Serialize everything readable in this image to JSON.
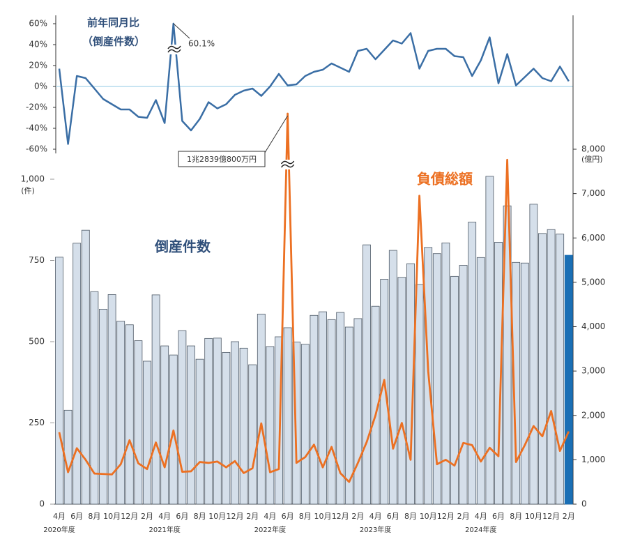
{
  "chart_data": [
    {
      "type": "line",
      "title": "前年同月比",
      "subtitle": "（倒産件数）",
      "color": "#3a6ea5",
      "values": [
        17,
        -55,
        10,
        8,
        -2,
        -12,
        -17,
        -22,
        -22,
        -29,
        -30,
        -13,
        -35,
        60.1,
        -33,
        -42,
        -31,
        -15,
        -21,
        -17,
        -8,
        -4,
        -2,
        -9,
        0,
        12,
        1,
        2,
        10,
        14,
        16,
        22,
        18,
        14,
        34,
        36,
        26,
        35,
        44,
        41,
        51,
        17,
        34,
        36,
        36,
        29,
        28,
        10,
        25,
        47,
        3,
        31,
        1,
        9,
        17,
        8,
        5,
        19,
        5
      ],
      "annotation": "60.1%",
      "ylim": [
        -60,
        60
      ],
      "yticks": [
        {
          "value": 60,
          "label": "60%"
        },
        {
          "value": 40,
          "label": "40%"
        },
        {
          "value": 20,
          "label": "20%"
        },
        {
          "value": 0,
          "label": "0%"
        },
        {
          "value": -20,
          "label": "-20%"
        },
        {
          "value": -40,
          "label": "-40%"
        },
        {
          "value": -60,
          "label": "-60%"
        }
      ],
      "zero_line_color": "#a8d4ea"
    },
    {
      "type": "bar-line",
      "categories": [
        "4月",
        null,
        "6月",
        null,
        "8月",
        null,
        "10月",
        null,
        "12月",
        null,
        "2月",
        null,
        "4月",
        null,
        "6月",
        null,
        "8月",
        null,
        "10月",
        null,
        "12月",
        null,
        "2月",
        null,
        "4月",
        null,
        "6月",
        null,
        "8月",
        null,
        "10月",
        null,
        "12月",
        null,
        "2月",
        null,
        "4月",
        null,
        "6月",
        null,
        "8月",
        null,
        "10月",
        null,
        "12月",
        null,
        "2月",
        null,
        "4月",
        null,
        "6月",
        null,
        "8月",
        null,
        "10月",
        null,
        "12月",
        null,
        "2月"
      ],
      "fiscal_years": [
        "2020年度",
        "2021年度",
        "2022年度",
        "2023年度",
        "2024年度"
      ],
      "series": [
        {
          "name": "倒産件数",
          "type": "bar",
          "color": "#d5dfea",
          "edge_color": "#4d5966",
          "latest_color": "#1a6fb5",
          "values": [
            760,
            289,
            803,
            843,
            654,
            600,
            645,
            563,
            552,
            503,
            440,
            644,
            487,
            459,
            534,
            487,
            446,
            510,
            511,
            467,
            500,
            480,
            429,
            585,
            485,
            515,
            543,
            499,
            492,
            581,
            592,
            568,
            590,
            545,
            571,
            798,
            609,
            692,
            781,
            698,
            740,
            676,
            790,
            771,
            804,
            701,
            735,
            868,
            759,
            1009,
            806,
            918,
            744,
            742,
            923,
            833,
            845,
            831,
            766
          ]
        },
        {
          "name": "負債総額",
          "type": "line",
          "axis": "y2",
          "color": "#ec7022",
          "values": [
            1620,
            720,
            1260,
            1000,
            690,
            680,
            670,
            900,
            1440,
            920,
            790,
            1390,
            830,
            1660,
            730,
            740,
            950,
            930,
            960,
            830,
            970,
            700,
            810,
            1820,
            720,
            790,
            12839.08,
            930,
            1060,
            1340,
            830,
            1290,
            700,
            500,
            930,
            1400,
            2000,
            2800,
            1250,
            1830,
            1000,
            6950,
            3000,
            900,
            1000,
            870,
            1380,
            1330,
            960,
            1270,
            1080,
            7760,
            950,
            1330,
            1760,
            1530,
            2100,
            1200,
            1640
          ]
        }
      ],
      "annotation": "1兆2839億800万円",
      "ylim": [
        0,
        1000
      ],
      "yticks": [
        0,
        250,
        500,
        750,
        {
          "value": 1000,
          "label": "1,000"
        }
      ],
      "y_unit": "(件)",
      "y2lim": [
        0,
        8000
      ],
      "y2ticks": [
        0,
        {
          "value": 1000,
          "label": "1,000"
        },
        {
          "value": 2000,
          "label": "2,000"
        },
        {
          "value": 3000,
          "label": "3,000"
        },
        {
          "value": 4000,
          "label": "4,000"
        },
        {
          "value": 5000,
          "label": "5,000"
        },
        {
          "value": 6000,
          "label": "6,000"
        },
        {
          "value": 7000,
          "label": "7,000"
        },
        {
          "value": 8000,
          "label": "8,000"
        }
      ],
      "y2_unit": "(億円)"
    }
  ]
}
